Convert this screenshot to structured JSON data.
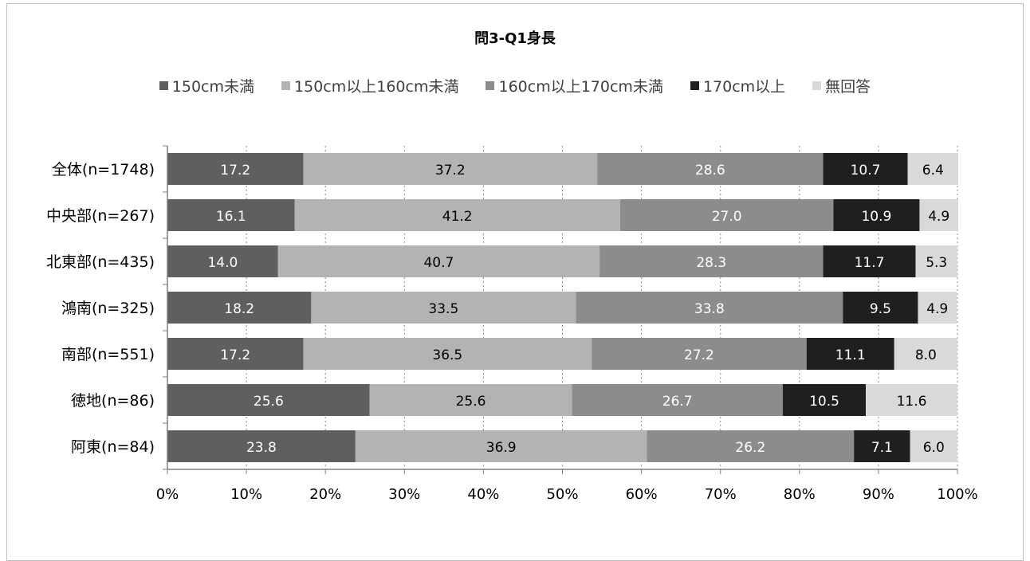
{
  "chart_data": {
    "type": "bar",
    "orientation": "horizontal",
    "stacked": "percent",
    "title": "問3-Q1身長",
    "categories": [
      "全体(n=1748)",
      "中央部(n=267)",
      "北東部(n=435)",
      "鴻南(n=325)",
      "南部(n=551)",
      "徳地(n=86)",
      "阿東(n=84)"
    ],
    "series": [
      {
        "name": "150cm未満",
        "color": "#5f5f5f",
        "label_color": "#ffffff",
        "values": [
          17.2,
          16.1,
          14.0,
          18.2,
          17.2,
          25.6,
          23.8
        ]
      },
      {
        "name": "150cm以上160cm未満",
        "color": "#b3b3b3",
        "label_color": "#000000",
        "values": [
          37.2,
          41.2,
          40.7,
          33.5,
          36.5,
          25.6,
          36.9
        ]
      },
      {
        "name": "160cm以上170cm未満",
        "color": "#8c8c8c",
        "label_color": "#ffffff",
        "values": [
          28.6,
          27.0,
          28.3,
          33.8,
          27.2,
          26.7,
          26.2
        ]
      },
      {
        "name": "170cm以上",
        "color": "#1f1f1f",
        "label_color": "#ffffff",
        "values": [
          10.7,
          10.9,
          11.7,
          9.5,
          11.1,
          10.5,
          7.1
        ]
      },
      {
        "name": "無回答",
        "color": "#d9d9d9",
        "label_color": "#000000",
        "values": [
          6.4,
          4.9,
          5.3,
          4.9,
          8.0,
          11.6,
          6.0
        ]
      }
    ],
    "xlim": [
      0,
      100
    ],
    "xticks": [
      "0%",
      "10%",
      "20%",
      "30%",
      "40%",
      "50%",
      "60%",
      "70%",
      "80%",
      "90%",
      "100%"
    ],
    "grid": "vertical dashed",
    "legend": "top"
  }
}
